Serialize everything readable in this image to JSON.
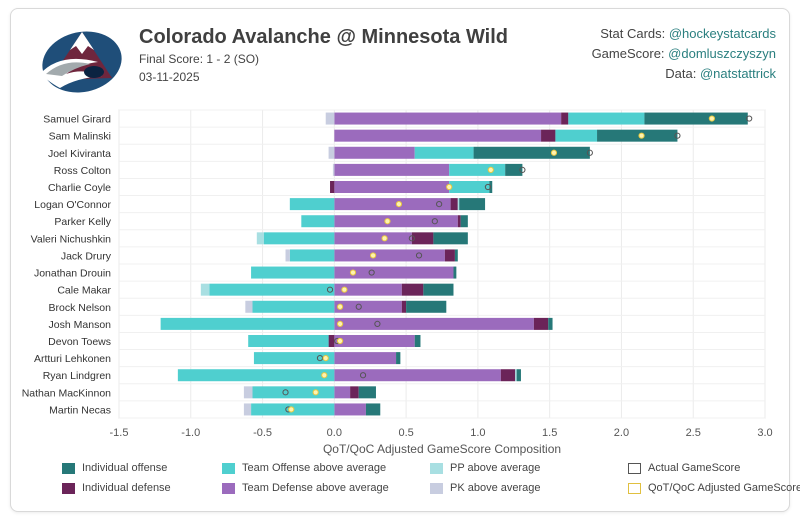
{
  "header": {
    "title": "Colorado Avalanche @ Minnesota Wild",
    "final_score": "Final Score: 1 - 2 (SO)",
    "date": "03-11-2025"
  },
  "credits": [
    {
      "label": "Stat Cards: ",
      "handle": "@hockeystatcards"
    },
    {
      "label": "GameScore: ",
      "handle": "@domluszczyszyn"
    },
    {
      "label": "Data: ",
      "handle": "@natstattrick"
    }
  ],
  "colors": {
    "ind_off": "#267878",
    "ind_def": "#6b2459",
    "team_off": "#4fcfcf",
    "team_def": "#9b6bbd",
    "pp": "#a8dfe2",
    "pk": "#c8cde0",
    "actual": "#555555",
    "qot": "#f4e07a"
  },
  "legend": [
    {
      "key": "ind_off",
      "label": "Individual offense",
      "type": "fill"
    },
    {
      "key": "team_off",
      "label": "Team Offense above average",
      "type": "fill"
    },
    {
      "key": "pp",
      "label": "PP above average",
      "type": "fill"
    },
    {
      "key": "actual",
      "label": "Actual GameScore",
      "type": "outline"
    },
    {
      "key": "ind_def",
      "label": "Individual defense",
      "type": "fill"
    },
    {
      "key": "team_def",
      "label": "Team Defense above average",
      "type": "fill"
    },
    {
      "key": "pk",
      "label": "PK above average",
      "type": "fill"
    },
    {
      "key": "qot",
      "label": "QoT/QoC Adjusted GameScore",
      "type": "outline"
    }
  ],
  "chart_data": {
    "type": "bar",
    "orientation": "horizontal",
    "stacked": true,
    "xlabel": "QoT/QoC Adjusted GameScore Composition",
    "xlim": [
      -1.5,
      3.0
    ],
    "xticks": [
      -1.5,
      -1.0,
      -0.5,
      0.0,
      0.5,
      1.0,
      1.5,
      2.0,
      2.5,
      3.0
    ],
    "xtick_labels": [
      "-1.5",
      "-1.0",
      "-0.5",
      "0.0",
      "0.5",
      "1.0",
      "1.5",
      "2.0",
      "2.5",
      "3.0"
    ],
    "grid": true,
    "players": [
      {
        "name": "Samuel Girard",
        "pos": [
          [
            "team_def",
            1.58
          ],
          [
            "ind_def",
            0.05
          ],
          [
            "team_off",
            0.53
          ],
          [
            "ind_off",
            0.72
          ]
        ],
        "neg": [
          [
            "pk",
            -0.06
          ]
        ],
        "actual": 2.89,
        "qot": 2.63
      },
      {
        "name": "Sam Malinski",
        "pos": [
          [
            "team_def",
            1.44
          ],
          [
            "ind_def",
            0.1
          ],
          [
            "team_off",
            0.29
          ],
          [
            "ind_off",
            0.56
          ]
        ],
        "neg": [],
        "actual": 2.39,
        "qot": 2.14
      },
      {
        "name": "Joel Kiviranta",
        "pos": [
          [
            "team_def",
            0.56
          ],
          [
            "team_off",
            0.41
          ],
          [
            "ind_off",
            0.81
          ]
        ],
        "neg": [
          [
            "pk",
            -0.04
          ]
        ],
        "actual": 1.78,
        "qot": 1.53
      },
      {
        "name": "Ross Colton",
        "pos": [
          [
            "team_def",
            0.8
          ],
          [
            "team_off",
            0.39
          ],
          [
            "ind_off",
            0.12
          ]
        ],
        "neg": [
          [
            "pk",
            -0.01
          ]
        ],
        "actual": 1.31,
        "qot": 1.09
      },
      {
        "name": "Charlie Coyle",
        "pos": [
          [
            "team_def",
            0.8
          ],
          [
            "team_off",
            0.28
          ],
          [
            "ind_off",
            0.02
          ]
        ],
        "neg": [
          [
            "ind_def",
            -0.03
          ]
        ],
        "actual": 1.07,
        "qot": 0.8
      },
      {
        "name": "Logan O'Connor",
        "pos": [
          [
            "team_def",
            0.81
          ],
          [
            "ind_def",
            0.05
          ],
          [
            "pp",
            0.01
          ],
          [
            "ind_off",
            0.18
          ]
        ],
        "neg": [
          [
            "team_off",
            -0.31
          ]
        ],
        "actual": 0.73,
        "qot": 0.45
      },
      {
        "name": "Parker Kelly",
        "pos": [
          [
            "team_def",
            0.86
          ],
          [
            "ind_def",
            0.02
          ],
          [
            "ind_off",
            0.05
          ]
        ],
        "neg": [
          [
            "team_off",
            -0.23
          ]
        ],
        "actual": 0.7,
        "qot": 0.37
      },
      {
        "name": "Valeri Nichushkin",
        "pos": [
          [
            "team_def",
            0.54
          ],
          [
            "ind_def",
            0.15
          ],
          [
            "ind_off",
            0.24
          ]
        ],
        "neg": [
          [
            "team_off",
            -0.49
          ],
          [
            "pp",
            -0.05
          ]
        ],
        "actual": 0.54,
        "qot": 0.35
      },
      {
        "name": "Jack Drury",
        "pos": [
          [
            "team_def",
            0.77
          ],
          [
            "ind_def",
            0.07
          ],
          [
            "ind_off",
            0.02
          ]
        ],
        "neg": [
          [
            "team_off",
            -0.31
          ],
          [
            "pk",
            -0.03
          ]
        ],
        "actual": 0.59,
        "qot": 0.27
      },
      {
        "name": "Jonathan Drouin",
        "pos": [
          [
            "team_def",
            0.83
          ],
          [
            "ind_off",
            0.02
          ]
        ],
        "neg": [
          [
            "team_off",
            -0.58
          ]
        ],
        "actual": 0.26,
        "qot": 0.13
      },
      {
        "name": "Cale Makar",
        "pos": [
          [
            "team_def",
            0.47
          ],
          [
            "ind_def",
            0.15
          ],
          [
            "ind_off",
            0.21
          ]
        ],
        "neg": [
          [
            "team_off",
            -0.87
          ],
          [
            "pp",
            -0.06
          ]
        ],
        "actual": -0.03,
        "qot": 0.07
      },
      {
        "name": "Brock Nelson",
        "pos": [
          [
            "team_def",
            0.47
          ],
          [
            "ind_def",
            0.03
          ],
          [
            "ind_off",
            0.28
          ]
        ],
        "neg": [
          [
            "team_off",
            -0.57
          ],
          [
            "pk",
            -0.05
          ]
        ],
        "actual": 0.17,
        "qot": 0.04
      },
      {
        "name": "Josh Manson",
        "pos": [
          [
            "team_def",
            1.39
          ],
          [
            "ind_def",
            0.1
          ],
          [
            "ind_off",
            0.03
          ]
        ],
        "neg": [
          [
            "team_off",
            -1.21
          ]
        ],
        "actual": 0.3,
        "qot": 0.04
      },
      {
        "name": "Devon Toews",
        "pos": [
          [
            "team_def",
            0.56
          ],
          [
            "ind_off",
            0.04
          ]
        ],
        "neg": [
          [
            "ind_def",
            -0.04
          ],
          [
            "team_off",
            -0.56
          ]
        ],
        "actual": 0.02,
        "qot": 0.04
      },
      {
        "name": "Artturi Lehkonen",
        "pos": [
          [
            "team_def",
            0.43
          ],
          [
            "ind_off",
            0.03
          ]
        ],
        "neg": [
          [
            "team_off",
            -0.56
          ]
        ],
        "actual": -0.1,
        "qot": -0.06
      },
      {
        "name": "Ryan Lindgren",
        "pos": [
          [
            "team_def",
            1.16
          ],
          [
            "ind_def",
            0.1
          ],
          [
            "pp",
            0.01
          ],
          [
            "ind_off",
            0.03
          ]
        ],
        "neg": [
          [
            "team_off",
            -1.09
          ]
        ],
        "actual": 0.2,
        "qot": -0.07
      },
      {
        "name": "Nathan MacKinnon",
        "pos": [
          [
            "team_def",
            0.11
          ],
          [
            "ind_def",
            0.06
          ],
          [
            "ind_off",
            0.12
          ]
        ],
        "neg": [
          [
            "team_off",
            -0.57
          ],
          [
            "pk",
            -0.06
          ]
        ],
        "actual": -0.34,
        "qot": -0.13
      },
      {
        "name": "Martin Necas",
        "pos": [
          [
            "team_def",
            0.22
          ],
          [
            "ind_off",
            0.1
          ]
        ],
        "neg": [
          [
            "team_off",
            -0.58
          ],
          [
            "pk",
            -0.05
          ]
        ],
        "actual": -0.32,
        "qot": -0.3
      }
    ]
  }
}
